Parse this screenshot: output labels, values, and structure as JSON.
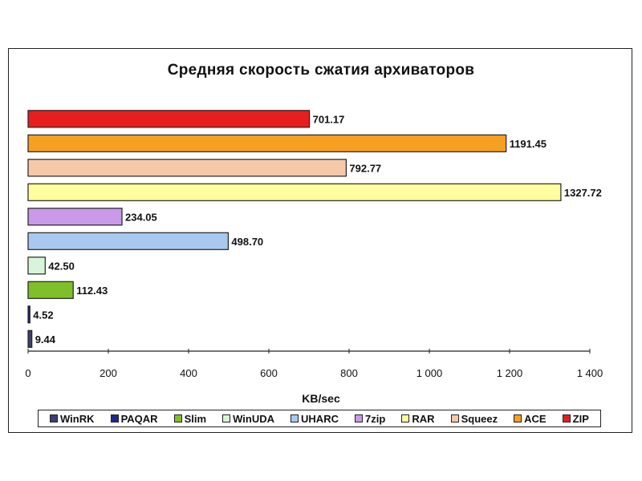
{
  "chart_data": {
    "type": "bar",
    "orientation": "horizontal",
    "title": "Средняя скорость сжатия архиваторов",
    "xlabel": "KB/sec",
    "ylabel": "",
    "xlim": [
      0,
      1400
    ],
    "x_ticks": [
      0,
      200,
      400,
      600,
      800,
      1000,
      1200,
      1400
    ],
    "x_tick_labels": [
      "0",
      "200",
      "400",
      "600",
      "800",
      "1 000",
      "1 200",
      "1 400"
    ],
    "grid": false,
    "legend_position": "bottom",
    "categories_bottom_to_top": [
      "WinRK",
      "PAQAR",
      "Slim",
      "WinUDA",
      "UHARC",
      "7zip",
      "RAR",
      "Squeez",
      "ACE",
      "ZIP"
    ],
    "values_bottom_to_top": [
      9.44,
      4.52,
      112.43,
      42.5,
      498.7,
      234.05,
      1327.72,
      792.77,
      1191.45,
      701.17
    ],
    "value_labels_bottom_to_top": [
      "9.44",
      "4.52",
      "112.43",
      "42.50",
      "498.70",
      "234.05",
      "1327.72",
      "792.77",
      "1191.45",
      "701.17"
    ],
    "colors_bottom_to_top": [
      "#3f3f6e",
      "#1f2a8a",
      "#7fbf2a",
      "#d9f5d9",
      "#a8c8f0",
      "#c89ae8",
      "#ffffa0",
      "#f5c9a8",
      "#f5a020",
      "#e81e1e"
    ]
  }
}
